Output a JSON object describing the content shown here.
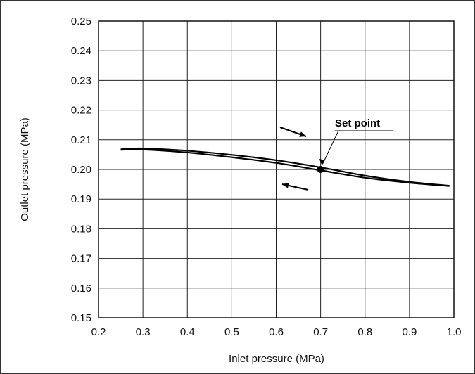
{
  "chart_data": {
    "type": "line",
    "title": "",
    "xlabel": "Inlet pressure (MPa)",
    "ylabel": "Outlet pressure (MPa)",
    "xlim": [
      0.2,
      1.0
    ],
    "ylim": [
      0.15,
      0.25
    ],
    "grid": true,
    "x_ticks": [
      "0.2",
      "0.3",
      "0.4",
      "0.5",
      "0.6",
      "0.7",
      "0.8",
      "0.9",
      "1.0"
    ],
    "y_ticks": [
      "0.15",
      "0.16",
      "0.17",
      "0.18",
      "0.19",
      "0.20",
      "0.21",
      "0.22",
      "0.23",
      "0.24",
      "0.25"
    ],
    "series": [
      {
        "direction": "increasing",
        "x": [
          0.25,
          0.3,
          0.4,
          0.5,
          0.6,
          0.7,
          0.8,
          0.9,
          0.99
        ],
        "y": [
          0.2068,
          0.2071,
          0.2063,
          0.2049,
          0.2031,
          0.2007,
          0.1979,
          0.1958,
          0.1945
        ]
      },
      {
        "direction": "decreasing",
        "x": [
          0.25,
          0.3,
          0.4,
          0.5,
          0.6,
          0.7,
          0.8,
          0.9,
          0.99
        ],
        "y": [
          0.2066,
          0.2067,
          0.2057,
          0.2041,
          0.2022,
          0.1997,
          0.1972,
          0.1955,
          0.1944
        ]
      }
    ],
    "annotations": [
      {
        "text": "Set point",
        "x": 0.7,
        "y": 0.2
      }
    ],
    "colors": {
      "line": "#000000",
      "grid": "#222222"
    }
  }
}
